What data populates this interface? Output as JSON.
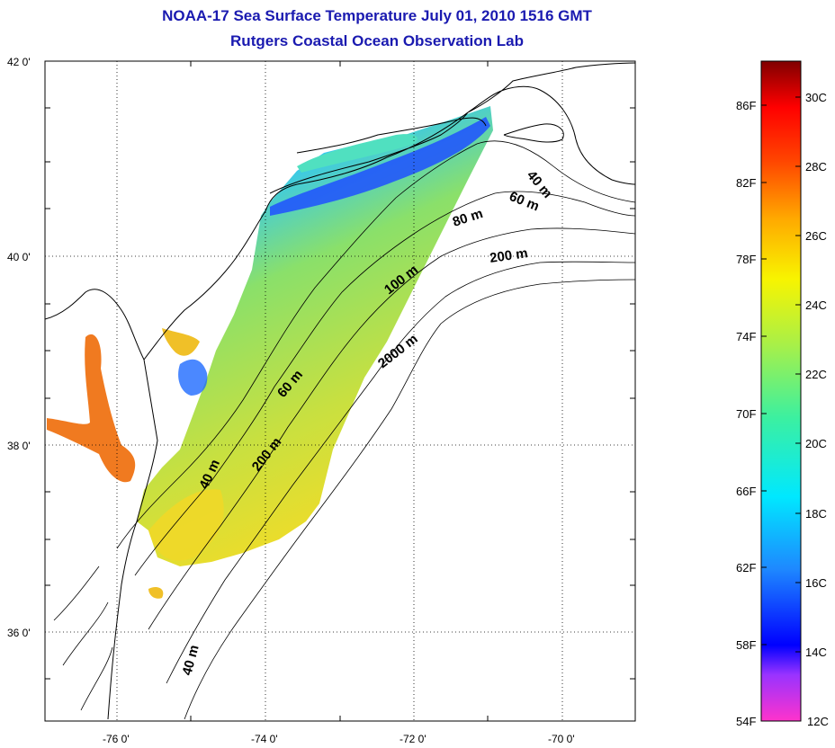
{
  "title": "NOAA-17 Sea Surface Temperature July 01, 2010 1516 GMT",
  "subtitle": "Rutgers Coastal Ocean Observation Lab",
  "map": {
    "lat_labels": [
      "42 0'",
      "40 0'",
      "38 0'",
      "36 0'"
    ],
    "lon_labels": [
      "-76 0'",
      "-74 0'",
      "-72 0'",
      "-70 0'"
    ],
    "contour_labels": [
      "40 m",
      "60 m",
      "80 m",
      "200 m",
      "100 m",
      "2000 m",
      "60 m",
      "200 m",
      "40 m",
      "40 m"
    ]
  },
  "colorbar": {
    "fahrenheit_labels": [
      "86F",
      "82F",
      "78F",
      "74F",
      "70F",
      "66F",
      "62F",
      "58F",
      "54F"
    ],
    "celsius_labels": [
      "30C",
      "28C",
      "26C",
      "24C",
      "22C",
      "20C",
      "18C",
      "16C",
      "14C",
      "12C"
    ]
  },
  "colors": {
    "title": "#1a1ab0",
    "cold": "#1e3cff",
    "cool": "#1ea8ff",
    "mid": "#7fe07a",
    "warm": "#f0d82a",
    "hot": "#f07820"
  }
}
